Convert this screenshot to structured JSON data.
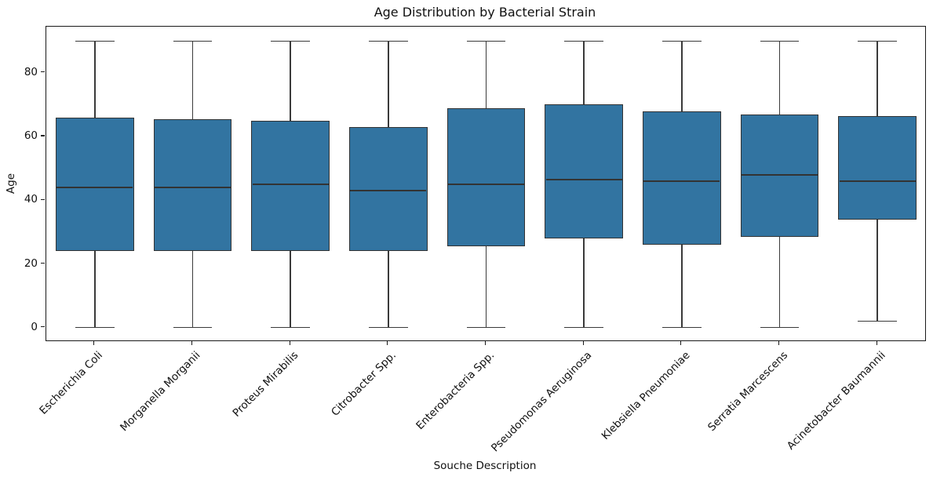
{
  "chart_data": {
    "type": "box",
    "title": "Age Distribution by Bacterial Strain",
    "xlabel": "Souche Description",
    "ylabel": "Age",
    "categories": [
      "Escherichia Coli",
      "Morganella Morganii",
      "Proteus Mirabilis",
      "Citrobacter Spp.",
      "Enterobacteria Spp.",
      "Pseudomonas Aeruginosa",
      "Klebsiella Pneumoniae",
      "Serratia Marcescens",
      "Acinetobacter Baumannii"
    ],
    "series": [
      {
        "name": "Age",
        "boxes": [
          {
            "whislo": 0,
            "q1": 24,
            "med": 44,
            "q3": 66,
            "whishi": 90
          },
          {
            "whislo": 0,
            "q1": 24,
            "med": 44,
            "q3": 65.5,
            "whishi": 90
          },
          {
            "whislo": 0,
            "q1": 24,
            "med": 45,
            "q3": 65,
            "whishi": 90
          },
          {
            "whislo": 0,
            "q1": 24,
            "med": 43,
            "q3": 63,
            "whishi": 90
          },
          {
            "whislo": 0,
            "q1": 25.5,
            "med": 45,
            "q3": 69,
            "whishi": 90
          },
          {
            "whislo": 0,
            "q1": 28,
            "med": 46.5,
            "q3": 70,
            "whishi": 90
          },
          {
            "whislo": 0,
            "q1": 26,
            "med": 46,
            "q3": 68,
            "whishi": 90
          },
          {
            "whislo": 0,
            "q1": 28.5,
            "med": 48,
            "q3": 67,
            "whishi": 90
          },
          {
            "whislo": 2,
            "q1": 34,
            "med": 46,
            "q3": 66.5,
            "whishi": 90
          }
        ]
      }
    ],
    "yticks": [
      0,
      20,
      40,
      60,
      80
    ],
    "ylim": [
      -4.5,
      94.5
    ],
    "grid": false,
    "legend": "none",
    "colors": {
      "box_fill": "#3274A1",
      "line": "#3a3a3a",
      "frame": "#1a1a1a",
      "text": "#111111",
      "background": "#ffffff"
    }
  }
}
